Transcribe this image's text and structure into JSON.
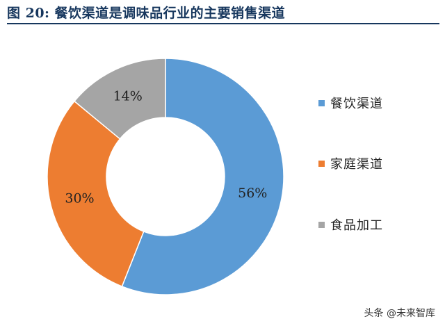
{
  "title": "图 20:  餐饮渠道是调味品行业的主要销售渠道",
  "watermark": "头条 @未来智库",
  "chart_data": {
    "type": "pie",
    "variant": "donut",
    "title": "图 20:  餐饮渠道是调味品行业的主要销售渠道",
    "legend_position": "right",
    "slices": [
      {
        "name": "餐饮渠道",
        "value": 56,
        "label": "56%",
        "color": "#5b9bd5"
      },
      {
        "name": "家庭渠道",
        "value": 30,
        "label": "30%",
        "color": "#ed7d31"
      },
      {
        "name": "食品加工",
        "value": 14,
        "label": "14%",
        "color": "#a5a5a5"
      }
    ]
  }
}
